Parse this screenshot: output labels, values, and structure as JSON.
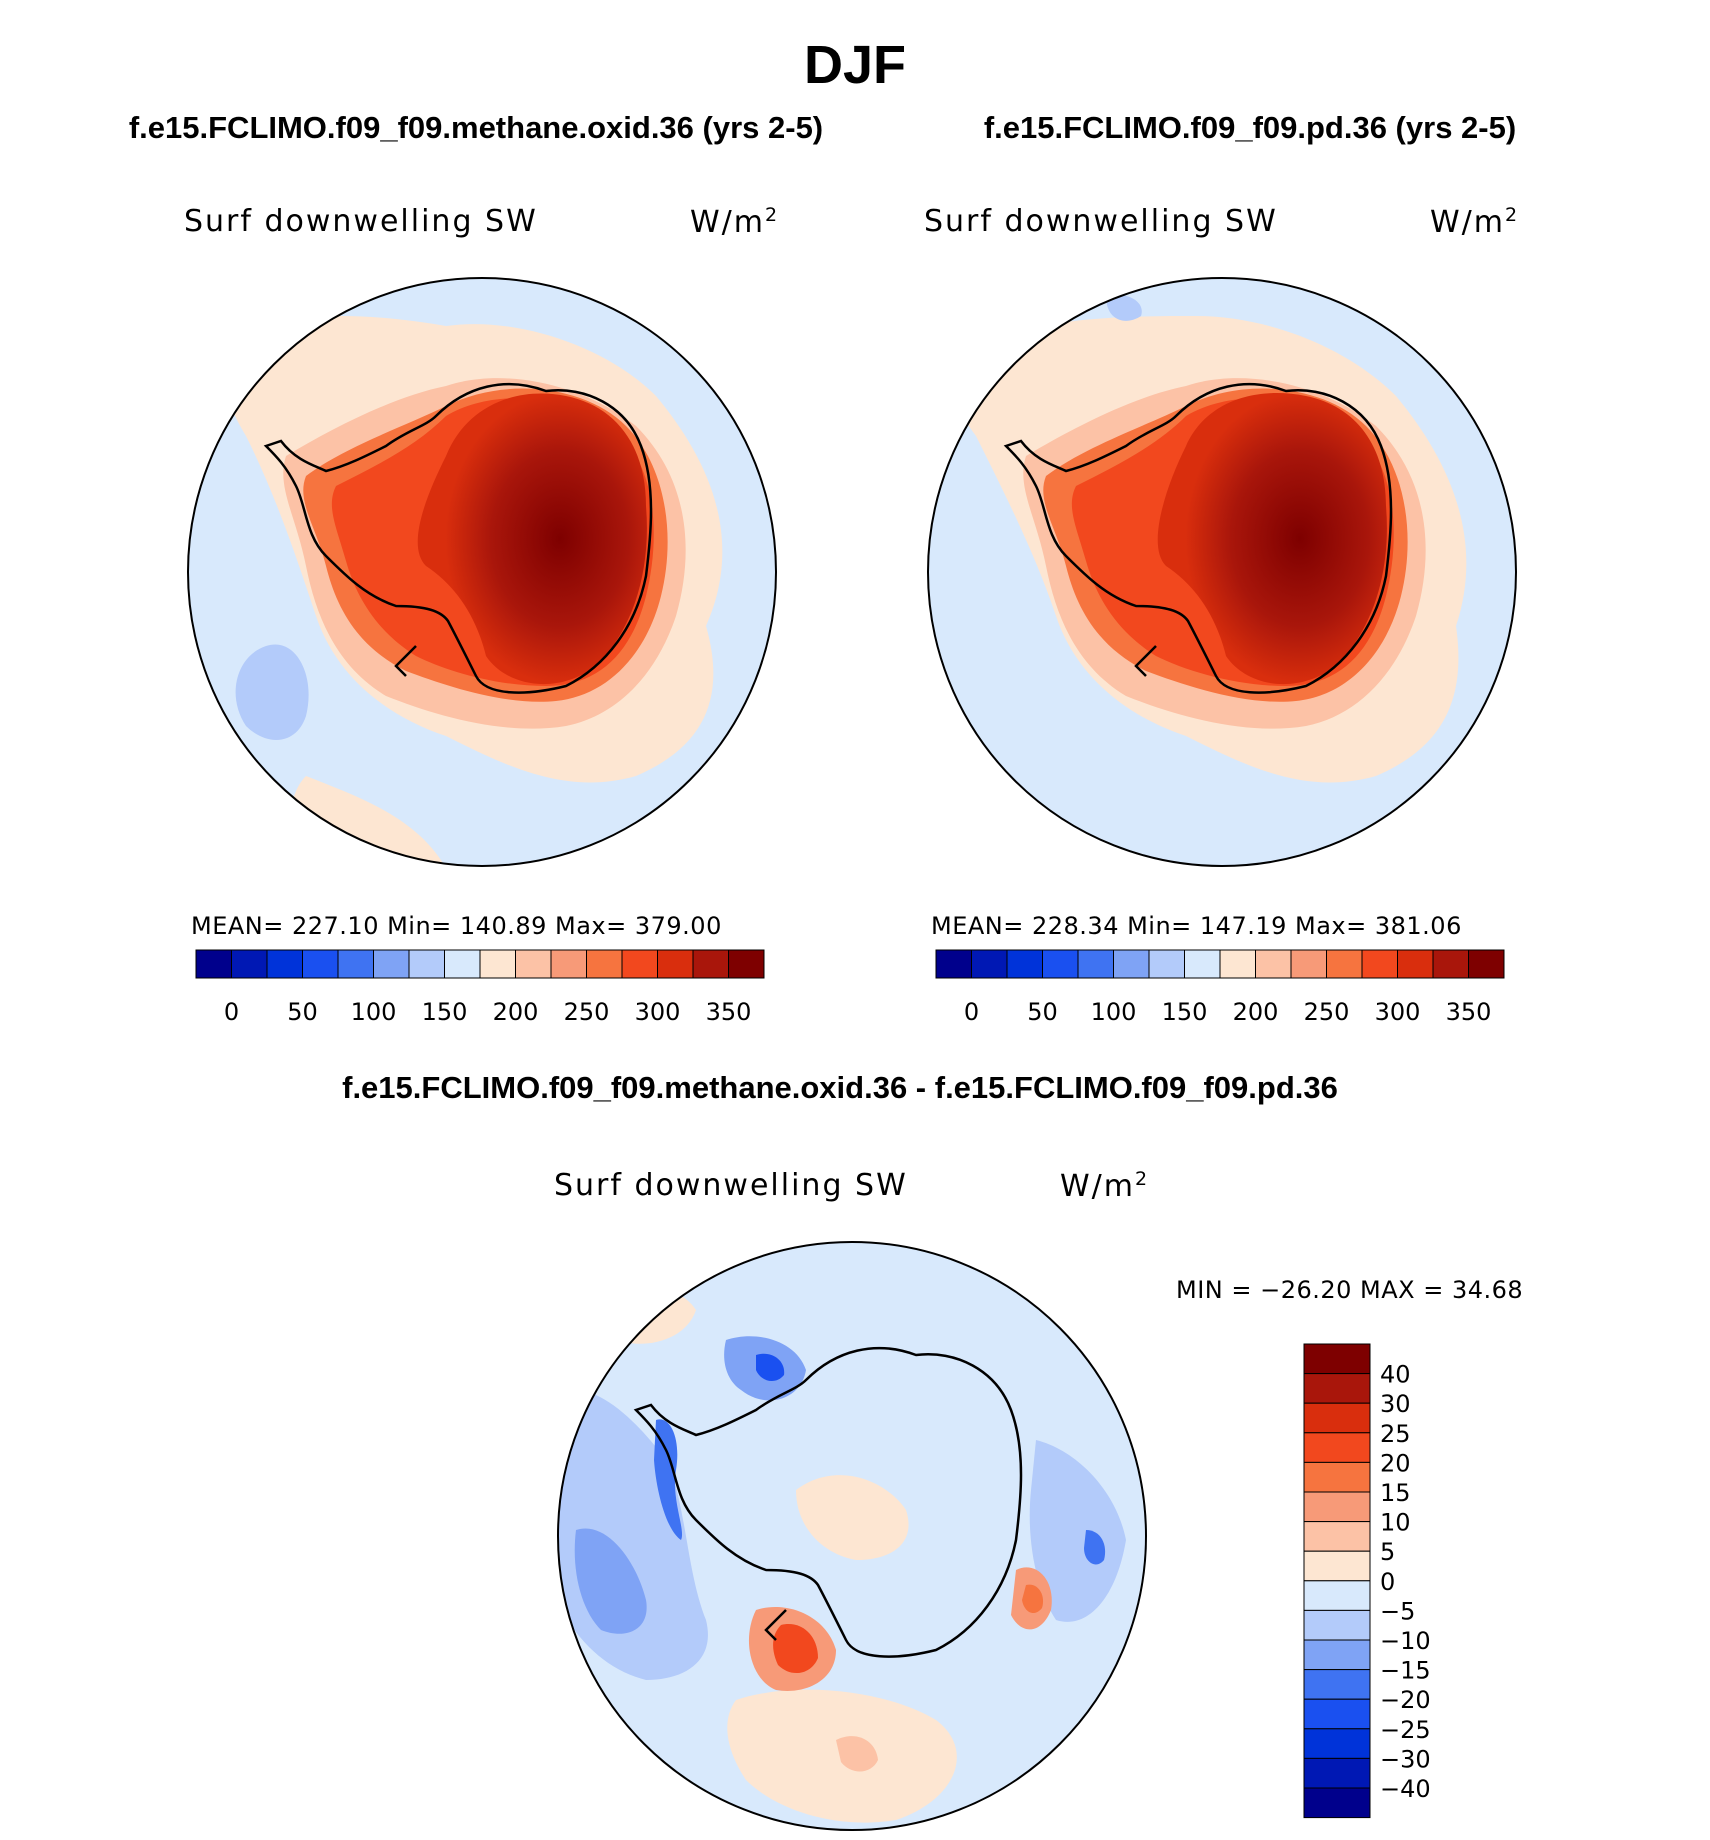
{
  "title": "DJF",
  "panels": [
    {
      "title": "f.e15.FCLIMO.f09_f09.methane.oxid.36 (yrs 2-5)",
      "variable": "Surf downwelling SW",
      "units_base": "W/m",
      "units_exp": "2",
      "stats": "MEAN= 227.10   Min= 140.89   Max= 379.00"
    },
    {
      "title": "f.e15.FCLIMO.f09_f09.pd.36 (yrs 2-5)",
      "variable": "Surf downwelling SW",
      "units_base": "W/m",
      "units_exp": "2",
      "stats": "MEAN= 228.34   Min= 147.19   Max= 381.06"
    },
    {
      "title": "f.e15.FCLIMO.f09_f09.methane.oxid.36 - f.e15.FCLIMO.f09_f09.pd.36",
      "variable": "Surf downwelling SW",
      "units_base": "W/m",
      "units_exp": "2",
      "stats": "MIN = −26.20 MAX =   34.68"
    }
  ],
  "colorbars": {
    "absolute": {
      "labels": [
        "0",
        "50",
        "100",
        "150",
        "200",
        "250",
        "300",
        "350"
      ],
      "colors": [
        "#00008c",
        "#0018b4",
        "#0033d9",
        "#1a50f0",
        "#3f73f2",
        "#7fa3f5",
        "#b3cbfa",
        "#d8e9fc",
        "#fde6d2",
        "#fcc2a6",
        "#f79a78",
        "#f6743f",
        "#f2481e",
        "#d92e0d",
        "#a9160b",
        "#7e0000"
      ]
    },
    "difference": {
      "labels": [
        "40",
        "30",
        "25",
        "20",
        "15",
        "10",
        "5",
        "0",
        "−5",
        "−10",
        "−15",
        "−20",
        "−25",
        "−30",
        "−40"
      ],
      "colors": [
        "#7e0000",
        "#a9160b",
        "#d92e0d",
        "#f2481e",
        "#f6743f",
        "#f79a78",
        "#fcc2a6",
        "#fde6d2",
        "#d8e9fc",
        "#b3cbfa",
        "#7fa3f5",
        "#3f73f2",
        "#1a50f0",
        "#0033d9",
        "#0018b4",
        "#00008c"
      ]
    }
  }
}
